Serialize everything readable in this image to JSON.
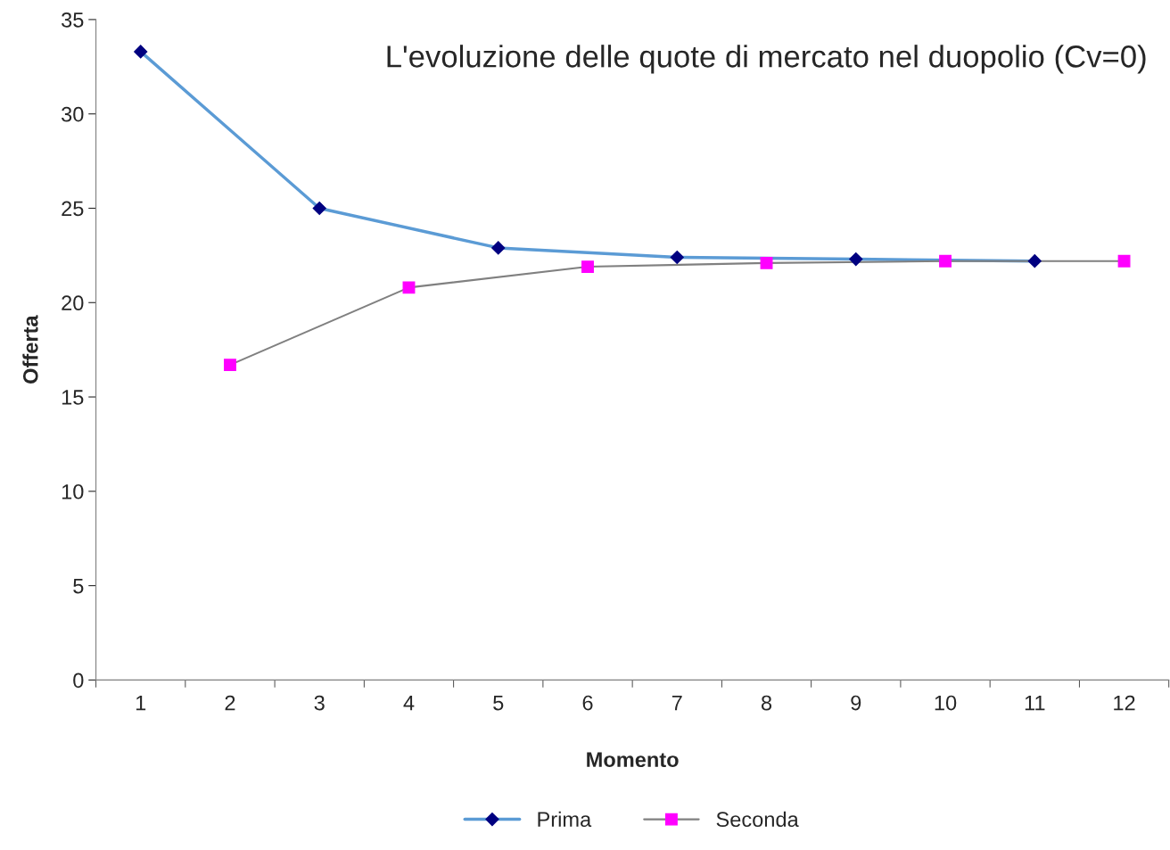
{
  "chart_data": {
    "type": "line",
    "title": "L'evoluzione delle quote di mercato nel duopolio (Cv=0)",
    "xlabel": "Momento",
    "ylabel": "Offerta",
    "categories": [
      "1",
      "2",
      "3",
      "4",
      "5",
      "6",
      "7",
      "8",
      "9",
      "10",
      "11",
      "12"
    ],
    "series": [
      {
        "name": "Prima",
        "color": "#5b9bd5",
        "colors": [
          "#000080",
          null,
          "#000080",
          null,
          "#000080",
          null,
          "#000080",
          null,
          "#000080",
          null,
          "#000080",
          null
        ],
        "marker": "diamond",
        "values": [
          33.3,
          null,
          25.0,
          null,
          22.9,
          null,
          22.4,
          null,
          22.3,
          null,
          22.2,
          null
        ]
      },
      {
        "name": "Seconda",
        "color": "#808080",
        "colors": [
          null,
          "#ff00ff",
          null,
          "#ff00ff",
          null,
          "#ff00ff",
          null,
          "#ff00ff",
          null,
          "#ff00ff",
          null,
          "#ff00ff"
        ],
        "marker": "square",
        "values": [
          null,
          16.7,
          null,
          20.8,
          null,
          21.9,
          null,
          22.1,
          null,
          22.2,
          null,
          22.2
        ]
      }
    ],
    "ylim": [
      0,
      35
    ],
    "yticks": [
      0,
      5,
      10,
      15,
      20,
      25,
      30,
      35
    ],
    "grid": false,
    "legend": "bottom"
  }
}
